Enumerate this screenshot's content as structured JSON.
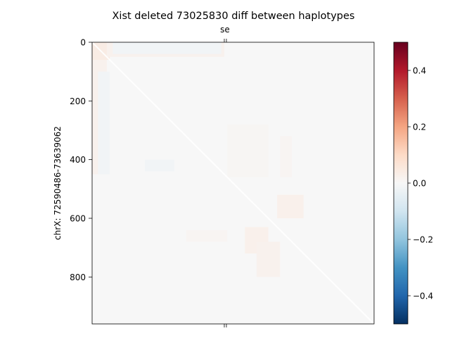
{
  "chart_data": {
    "type": "heatmap",
    "title": "Xist deleted 73025830 diff between haplotypes",
    "top_tick_label": "se",
    "ylabel": "chrX: 72590486-73639062",
    "y_ticks": [
      0,
      200,
      400,
      600,
      800
    ],
    "y_range": [
      0,
      960
    ],
    "x_range": [
      0,
      960
    ],
    "top_tick_position": 450,
    "colormap": "RdBu_r",
    "colorbar": {
      "range": [
        -0.5,
        0.5
      ],
      "ticks": [
        0.4,
        0.2,
        0.0,
        -0.2,
        -0.4
      ],
      "tick_labels": [
        "0.4",
        "0.2",
        "0.0",
        "−0.2",
        "−0.4"
      ],
      "stops": [
        "#053061",
        "#2166ac",
        "#4393c3",
        "#92c5de",
        "#d1e5f0",
        "#f7f7f7",
        "#fddbc7",
        "#f4a582",
        "#d6604d",
        "#b2182b",
        "#67001f"
      ]
    },
    "background_value": 0.0,
    "regions": [
      {
        "x": [
          0,
          60
        ],
        "y": [
          0,
          60
        ],
        "value": 0.04
      },
      {
        "x": [
          0,
          50
        ],
        "y": [
          60,
          450
        ],
        "value": 0.02
      },
      {
        "x": [
          50,
          450
        ],
        "y": [
          0,
          50
        ],
        "value": 0.02
      },
      {
        "x": [
          70,
          440
        ],
        "y": [
          0,
          40
        ],
        "value": -0.015
      },
      {
        "x": [
          20,
          60
        ],
        "y": [
          100,
          450
        ],
        "value": -0.015
      },
      {
        "x": [
          180,
          280
        ],
        "y": [
          400,
          440
        ],
        "value": -0.015
      },
      {
        "x": [
          630,
          720
        ],
        "y": [
          520,
          600
        ],
        "value": 0.025
      },
      {
        "x": [
          520,
          600
        ],
        "y": [
          630,
          720
        ],
        "value": 0.025
      },
      {
        "x": [
          640,
          680
        ],
        "y": [
          320,
          460
        ],
        "value": 0.01
      },
      {
        "x": [
          320,
          460
        ],
        "y": [
          640,
          680
        ],
        "value": 0.01
      },
      {
        "x": [
          560,
          640
        ],
        "y": [
          680,
          800
        ],
        "value": 0.02
      },
      {
        "x": [
          460,
          600
        ],
        "y": [
          280,
          460
        ],
        "value": 0.008
      }
    ]
  }
}
